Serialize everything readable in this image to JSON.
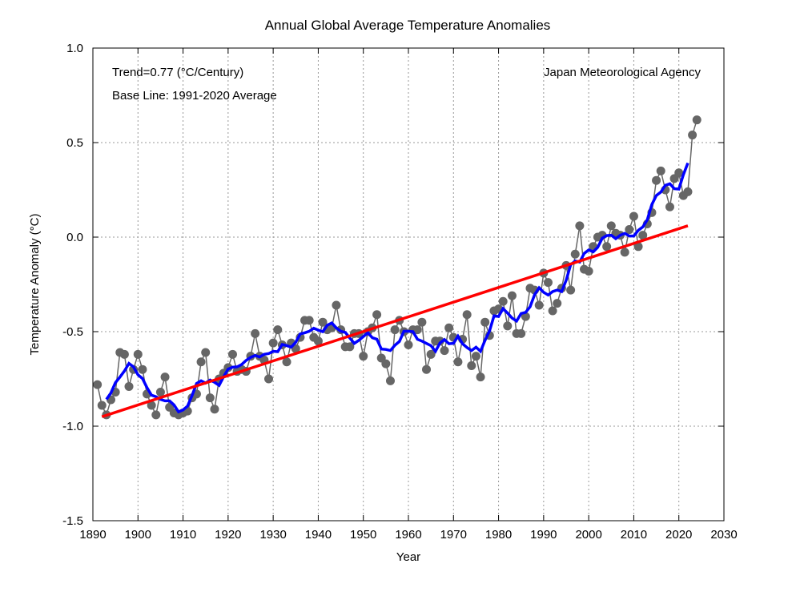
{
  "chart_data": {
    "type": "line",
    "title": "Annual Global Average Temperature Anomalies",
    "xlabel": "Year",
    "ylabel": "Temperature Anomaly (°C)",
    "xlim": [
      1890,
      2030
    ],
    "ylim": [
      -1.5,
      1.0
    ],
    "xticks": [
      "1890",
      "1900",
      "1910",
      "1920",
      "1930",
      "1940",
      "1950",
      "1960",
      "1970",
      "1980",
      "1990",
      "2000",
      "2010",
      "2020",
      "2030"
    ],
    "yticks": [
      "1.0",
      "0.5",
      "0.0",
      "-0.5",
      "-1.0",
      "-1.5"
    ],
    "grid": true,
    "annotations": {
      "trend": "Trend=0.77 (°C/Century)",
      "baseline": "Base Line: 1991-2020 Average",
      "source": "Japan Meteorological Agency"
    },
    "colors": {
      "annual": "#666666",
      "running_mean": "#0000ff",
      "trend": "#ff0000"
    },
    "series": [
      {
        "kind": "annual",
        "x_start": 1891,
        "values": [
          -0.78,
          -0.89,
          -0.94,
          -0.86,
          -0.82,
          -0.61,
          -0.62,
          -0.79,
          -0.7,
          -0.62,
          -0.7,
          -0.83,
          -0.89,
          -0.94,
          -0.82,
          -0.74,
          -0.9,
          -0.93,
          -0.94,
          -0.93,
          -0.92,
          -0.85,
          -0.83,
          -0.66,
          -0.61,
          -0.85,
          -0.91,
          -0.75,
          -0.72,
          -0.69,
          -0.62,
          -0.71,
          -0.7,
          -0.71,
          -0.63,
          -0.51,
          -0.63,
          -0.65,
          -0.75,
          -0.56,
          -0.49,
          -0.57,
          -0.66,
          -0.56,
          -0.59,
          -0.53,
          -0.44,
          -0.44,
          -0.53,
          -0.55,
          -0.45,
          -0.49,
          -0.48,
          -0.36,
          -0.49,
          -0.58,
          -0.58,
          -0.51,
          -0.51,
          -0.63,
          -0.5,
          -0.48,
          -0.41,
          -0.64,
          -0.67,
          -0.76,
          -0.49,
          -0.44,
          -0.5,
          -0.57,
          -0.49,
          -0.49,
          -0.45,
          -0.7,
          -0.62,
          -0.55,
          -0.55,
          -0.6,
          -0.48,
          -0.53,
          -0.66,
          -0.54,
          -0.41,
          -0.68,
          -0.63,
          -0.74,
          -0.45,
          -0.52,
          -0.39,
          -0.38,
          -0.34,
          -0.47,
          -0.31,
          -0.51,
          -0.51,
          -0.42,
          -0.27,
          -0.28,
          -0.36,
          -0.19,
          -0.24,
          -0.39,
          -0.35,
          -0.27,
          -0.15,
          -0.28,
          -0.09,
          0.06,
          -0.17,
          -0.18,
          -0.05,
          0.0,
          0.01,
          -0.05,
          0.06,
          0.02,
          0.01,
          -0.08,
          0.04,
          0.11,
          -0.05,
          0.01,
          0.07,
          0.13,
          0.3,
          0.35,
          0.25,
          0.16,
          0.31,
          0.34,
          0.22,
          0.24,
          0.54,
          0.62
        ]
      },
      {
        "kind": "5-year running mean",
        "window": 5
      },
      {
        "kind": "linear trend",
        "x": [
          1892,
          2022
        ],
        "y": [
          -0.95,
          0.06
        ]
      }
    ]
  }
}
